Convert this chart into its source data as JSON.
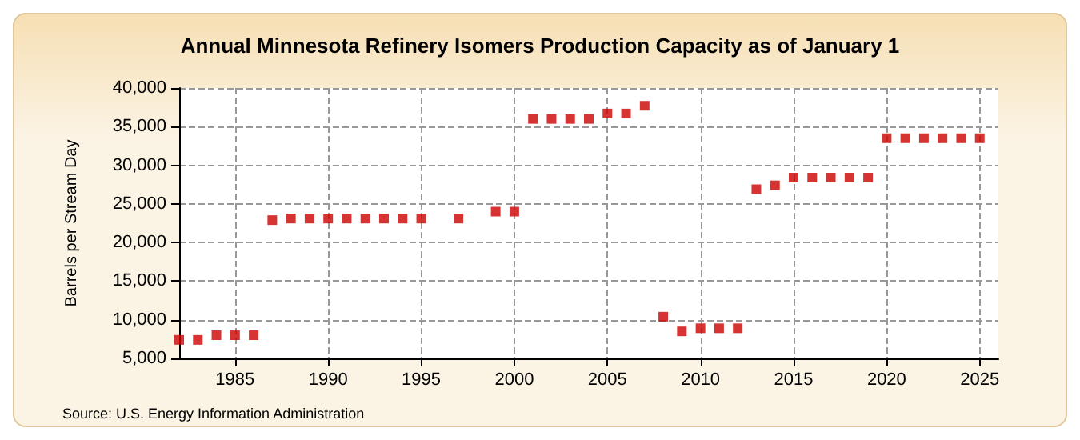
{
  "chart_data": {
    "type": "scatter",
    "title": "Annual Minnesota Refinery Isomers Production Capacity as of January 1",
    "ylabel": "Barrels per Stream Day",
    "annotations": [
      "Source: U.S. Energy Information Administration"
    ],
    "x": [
      1982,
      1983,
      1984,
      1985,
      1986,
      1987,
      1988,
      1989,
      1990,
      1991,
      1992,
      1993,
      1994,
      1995,
      1997,
      1999,
      2000,
      2001,
      2002,
      2003,
      2004,
      2005,
      2006,
      2007,
      2008,
      2009,
      2010,
      2011,
      2012,
      2013,
      2014,
      2015,
      2016,
      2017,
      2018,
      2019,
      2020,
      2021,
      2022,
      2023,
      2024,
      2025
    ],
    "series": [
      {
        "color": "#cc0000",
        "values": [
          7400,
          7400,
          8000,
          8000,
          8000,
          22900,
          23100,
          23100,
          23100,
          23100,
          23100,
          23100,
          23100,
          23100,
          23100,
          24000,
          24000,
          36000,
          36000,
          36000,
          36000,
          36700,
          36700,
          37700,
          10400,
          8500,
          8900,
          8900,
          8900,
          26900,
          27400,
          28400,
          28400,
          28400,
          28400,
          28400,
          33500,
          33500,
          33500,
          33500,
          33500,
          33500
        ]
      }
    ],
    "xlim": [
      1982,
      2026
    ],
    "xticks": [
      1985,
      1990,
      1995,
      2000,
      2005,
      2010,
      2015,
      2020,
      2025
    ],
    "ylim": [
      5000,
      40000
    ],
    "yticks": [
      {
        "value": 5000,
        "label": "5,000"
      },
      {
        "value": 10000,
        "label": "10,000"
      },
      {
        "value": 15000,
        "label": "15,000"
      },
      {
        "value": 20000,
        "label": "20,000"
      },
      {
        "value": 25000,
        "label": "25,000"
      },
      {
        "value": 30000,
        "label": "30,000"
      },
      {
        "value": 35000,
        "label": "35,000"
      },
      {
        "value": 40000,
        "label": "40,000"
      }
    ],
    "grid": true,
    "marker": "square"
  }
}
